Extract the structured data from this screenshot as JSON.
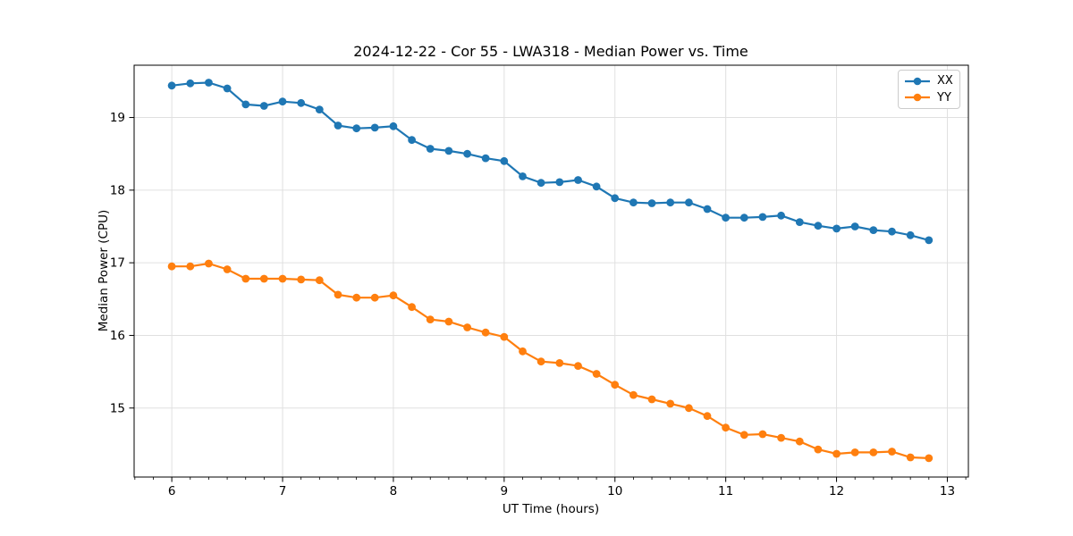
{
  "chart_data": {
    "type": "line",
    "title": "2024-12-22 - Cor 55 - LWA318 - Median Power vs. Time",
    "xlabel": "UT Time (hours)",
    "ylabel": "Median Power (CPU)",
    "xlim": [
      5.66,
      13.19
    ],
    "ylim": [
      14.05,
      19.72
    ],
    "xticks": [
      6,
      7,
      8,
      9,
      10,
      11,
      12,
      13
    ],
    "yticks": [
      15,
      16,
      17,
      18,
      19
    ],
    "x_minor_divisions": 6,
    "grid": true,
    "legend_position": "upper right",
    "x": [
      6.0,
      6.167,
      6.333,
      6.5,
      6.667,
      6.833,
      7.0,
      7.167,
      7.333,
      7.5,
      7.667,
      7.833,
      8.0,
      8.167,
      8.333,
      8.5,
      8.667,
      8.833,
      9.0,
      9.167,
      9.333,
      9.5,
      9.667,
      9.833,
      10.0,
      10.167,
      10.333,
      10.5,
      10.667,
      10.833,
      11.0,
      11.167,
      11.333,
      11.5,
      11.667,
      11.833,
      12.0,
      12.167,
      12.333,
      12.5,
      12.667,
      12.833
    ],
    "series": [
      {
        "name": "XX",
        "color": "#1f77b4",
        "marker": "circle",
        "values": [
          19.44,
          19.47,
          19.48,
          19.4,
          19.18,
          19.16,
          19.22,
          19.2,
          19.11,
          18.89,
          18.85,
          18.86,
          18.88,
          18.69,
          18.57,
          18.54,
          18.5,
          18.44,
          18.4,
          18.19,
          18.1,
          18.11,
          18.14,
          18.05,
          17.89,
          17.83,
          17.82,
          17.83,
          17.83,
          17.74,
          17.62,
          17.62,
          17.63,
          17.65,
          17.56,
          17.51,
          17.47,
          17.5,
          17.45,
          17.43,
          17.38,
          17.31
        ]
      },
      {
        "name": "YY",
        "color": "#ff7f0e",
        "marker": "circle",
        "values": [
          16.95,
          16.95,
          16.99,
          16.91,
          16.78,
          16.78,
          16.78,
          16.77,
          16.76,
          16.56,
          16.52,
          16.52,
          16.55,
          16.39,
          16.22,
          16.19,
          16.11,
          16.04,
          15.98,
          15.78,
          15.64,
          15.62,
          15.58,
          15.47,
          15.32,
          15.18,
          15.12,
          15.06,
          15.0,
          14.89,
          14.73,
          14.63,
          14.64,
          14.59,
          14.54,
          14.43,
          14.37,
          14.39,
          14.39,
          14.4,
          14.32,
          14.31
        ]
      }
    ]
  },
  "colors": {
    "background": "#ffffff",
    "grid": "#e0e0e0",
    "spine": "#000000",
    "tick": "#000000",
    "legend_border": "#cccccc"
  }
}
